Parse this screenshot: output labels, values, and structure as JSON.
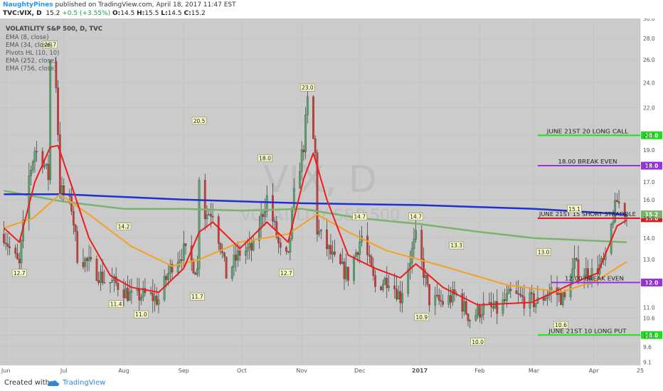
{
  "header": {
    "author": "NaughtyPines",
    "published": "published on TradingView.com, April 18, 2017 11:47 EST",
    "symbol": "TVC:VIX, D",
    "last": "15.2",
    "change": "+0.5 (+3.55%)",
    "o_label": "O:",
    "o": "14.5",
    "h_label": "H:",
    "h": "15.5",
    "l_label": "L:",
    "l": "14.5",
    "c_label": "C:",
    "c": "15.2"
  },
  "footer": {
    "created": "Created with",
    "brand": "TradingView"
  },
  "colors": {
    "background": "#cbcbcb",
    "up_candle": "#53a86b",
    "down_candle": "#d23a34",
    "ema8": "#ee1c1c",
    "ema34": "#f7a023",
    "ema252": "#7cb36b",
    "ema756": "#1f2fd2",
    "long_call": "#1fe01f",
    "break_even": "#9b30e0",
    "short": "#e4141b"
  },
  "chart_data": {
    "type": "candlestick",
    "title": "VOLATILITY S&P 500, D, TVC",
    "watermark_big": "VIX, D",
    "watermark_small": "VOLATILITY S&P 500",
    "legend": [
      "EMA (8, close)",
      "EMA (34, close)",
      "Pivots HL (10, 10)",
      "EMA (252, close)",
      "EMA (756, close)"
    ],
    "y_scale": "log",
    "ylim": [
      9.0,
      30.0
    ],
    "y_ticks": [
      "30.0",
      "28.0",
      "26.0",
      "24.0",
      "22.0",
      "20.0",
      "19.0",
      "18.0",
      "17.0",
      "16.0",
      "15.0",
      "14.0",
      "13.0",
      "12.0",
      "11.0",
      "10.6",
      "10.0",
      "9.6",
      "9.1"
    ],
    "x_ticks": [
      {
        "label": "Jun",
        "date": "2016-06-01"
      },
      {
        "label": "Jul",
        "date": "2016-07-01"
      },
      {
        "label": "Aug",
        "date": "2016-08-01"
      },
      {
        "label": "Sep",
        "date": "2016-09-01"
      },
      {
        "label": "Oct",
        "date": "2016-10-01"
      },
      {
        "label": "Nov",
        "date": "2016-11-01"
      },
      {
        "label": "Dec",
        "date": "2016-12-01"
      },
      {
        "label": "2017",
        "date": "2017-01-01"
      },
      {
        "label": "Feb",
        "date": "2017-02-01"
      },
      {
        "label": "Mar",
        "date": "2017-03-01"
      },
      {
        "label": "Apr",
        "date": "2017-04-01"
      },
      {
        "label": "25",
        "date": "2017-04-25"
      }
    ],
    "xlim": [
      "2016-05-29",
      "2017-04-25"
    ],
    "price_anchors": [
      [
        "2016-05-31",
        14.2
      ],
      [
        "2016-06-03",
        13.5
      ],
      [
        "2016-06-08",
        12.7
      ],
      [
        "2016-06-13",
        17.3
      ],
      [
        "2016-06-16",
        19.0
      ],
      [
        "2016-06-20",
        18.4
      ],
      [
        "2016-06-23",
        17.3
      ],
      [
        "2016-06-24",
        25.8
      ],
      [
        "2016-06-27",
        23.9
      ],
      [
        "2016-06-29",
        16.6
      ],
      [
        "2016-07-05",
        15.6
      ],
      [
        "2016-07-08",
        13.2
      ],
      [
        "2016-07-14",
        12.8
      ],
      [
        "2016-07-22",
        12.1
      ],
      [
        "2016-07-29",
        11.9
      ],
      [
        "2016-08-05",
        11.4
      ],
      [
        "2016-08-12",
        11.5
      ],
      [
        "2016-08-19",
        11.3
      ],
      [
        "2016-08-26",
        12.8
      ],
      [
        "2016-09-01",
        13.4
      ],
      [
        "2016-09-08",
        12.5
      ],
      [
        "2016-09-09",
        17.5
      ],
      [
        "2016-09-12",
        15.2
      ],
      [
        "2016-09-16",
        15.4
      ],
      [
        "2016-09-23",
        12.3
      ],
      [
        "2016-09-30",
        13.3
      ],
      [
        "2016-10-07",
        13.5
      ],
      [
        "2016-10-14",
        16.1
      ],
      [
        "2016-10-21",
        13.3
      ],
      [
        "2016-10-25",
        13.0
      ],
      [
        "2016-10-28",
        16.2
      ],
      [
        "2016-11-02",
        19.3
      ],
      [
        "2016-11-04",
        22.5
      ],
      [
        "2016-11-08",
        18.7
      ],
      [
        "2016-11-09",
        14.4
      ],
      [
        "2016-11-18",
        12.9
      ],
      [
        "2016-11-25",
        12.3
      ],
      [
        "2016-12-02",
        14.1
      ],
      [
        "2016-12-09",
        11.8
      ],
      [
        "2016-12-16",
        12.2
      ],
      [
        "2016-12-22",
        11.4
      ],
      [
        "2016-12-30",
        14.0
      ],
      [
        "2017-01-06",
        11.3
      ],
      [
        "2017-01-13",
        11.2
      ],
      [
        "2017-01-20",
        11.5
      ],
      [
        "2017-01-27",
        10.6
      ],
      [
        "2017-02-03",
        11.0
      ],
      [
        "2017-02-10",
        10.9
      ],
      [
        "2017-02-17",
        11.5
      ],
      [
        "2017-02-24",
        11.3
      ],
      [
        "2017-03-03",
        11.2
      ],
      [
        "2017-03-10",
        11.7
      ],
      [
        "2017-03-17",
        11.3
      ],
      [
        "2017-03-22",
        12.8
      ],
      [
        "2017-03-24",
        12.5
      ],
      [
        "2017-03-31",
        12.4
      ],
      [
        "2017-04-07",
        12.9
      ],
      [
        "2017-04-11",
        15.1
      ],
      [
        "2017-04-13",
        15.9
      ],
      [
        "2017-04-18",
        15.2
      ]
    ],
    "ema8": [
      [
        "2016-05-31",
        14.5
      ],
      [
        "2016-06-08",
        13.8
      ],
      [
        "2016-06-16",
        17.0
      ],
      [
        "2016-06-24",
        19.2
      ],
      [
        "2016-06-28",
        19.3
      ],
      [
        "2016-07-05",
        16.8
      ],
      [
        "2016-07-14",
        14.0
      ],
      [
        "2016-07-25",
        12.3
      ],
      [
        "2016-08-05",
        11.8
      ],
      [
        "2016-08-19",
        11.6
      ],
      [
        "2016-09-01",
        12.6
      ],
      [
        "2016-09-09",
        14.3
      ],
      [
        "2016-09-16",
        14.8
      ],
      [
        "2016-09-30",
        13.5
      ],
      [
        "2016-10-14",
        14.8
      ],
      [
        "2016-10-25",
        13.8
      ],
      [
        "2016-11-02",
        17.2
      ],
      [
        "2016-11-07",
        18.8
      ],
      [
        "2016-11-14",
        16.0
      ],
      [
        "2016-11-25",
        13.2
      ],
      [
        "2016-12-09",
        12.6
      ],
      [
        "2016-12-22",
        12.2
      ],
      [
        "2016-12-30",
        12.8
      ],
      [
        "2017-01-13",
        11.8
      ],
      [
        "2017-01-31",
        11.1
      ],
      [
        "2017-02-28",
        11.2
      ],
      [
        "2017-03-22",
        12.0
      ],
      [
        "2017-04-03",
        12.4
      ],
      [
        "2017-04-13",
        14.6
      ],
      [
        "2017-04-18",
        14.9
      ]
    ],
    "ema34": [
      [
        "2016-05-31",
        14.5
      ],
      [
        "2016-06-15",
        15.0
      ],
      [
        "2016-06-29",
        16.3
      ],
      [
        "2016-07-14",
        15.2
      ],
      [
        "2016-08-05",
        13.6
      ],
      [
        "2016-08-26",
        12.7
      ],
      [
        "2016-09-09",
        13.0
      ],
      [
        "2016-09-30",
        13.8
      ],
      [
        "2016-10-25",
        14.2
      ],
      [
        "2016-11-09",
        15.2
      ],
      [
        "2016-11-25",
        14.3
      ],
      [
        "2016-12-15",
        13.4
      ],
      [
        "2017-01-13",
        12.7
      ],
      [
        "2017-02-15",
        11.9
      ],
      [
        "2017-03-15",
        11.6
      ],
      [
        "2017-04-03",
        12.1
      ],
      [
        "2017-04-18",
        12.9
      ]
    ],
    "ema252": [
      [
        "2016-05-31",
        16.5
      ],
      [
        "2016-06-30",
        15.9
      ],
      [
        "2016-08-01",
        15.5
      ],
      [
        "2016-09-01",
        15.5
      ],
      [
        "2016-10-01",
        15.4
      ],
      [
        "2016-11-01",
        15.5
      ],
      [
        "2016-12-01",
        15.0
      ],
      [
        "2017-01-01",
        14.7
      ],
      [
        "2017-02-01",
        14.3
      ],
      [
        "2017-03-01",
        14.0
      ],
      [
        "2017-04-18",
        13.8
      ]
    ],
    "ema756": [
      [
        "2016-05-31",
        16.3
      ],
      [
        "2016-07-01",
        16.3
      ],
      [
        "2016-09-01",
        16.0
      ],
      [
        "2016-11-01",
        15.8
      ],
      [
        "2017-01-01",
        15.7
      ],
      [
        "2017-03-01",
        15.5
      ],
      [
        "2017-04-18",
        15.2
      ]
    ],
    "pivot_labels": [
      {
        "text": "26.7",
        "date": "2016-06-24",
        "value": 26.7,
        "pos": "above"
      },
      {
        "text": "12.7",
        "date": "2016-06-08",
        "value": 12.7,
        "pos": "below"
      },
      {
        "text": "11.4",
        "date": "2016-07-28",
        "value": 11.4,
        "pos": "below"
      },
      {
        "text": "14.2",
        "date": "2016-08-01",
        "value": 14.2,
        "pos": "above"
      },
      {
        "text": "11.0",
        "date": "2016-08-10",
        "value": 11.0,
        "pos": "below"
      },
      {
        "text": "20.5",
        "date": "2016-09-09",
        "value": 20.5,
        "pos": "above"
      },
      {
        "text": "11.7",
        "date": "2016-09-08",
        "value": 11.7,
        "pos": "below"
      },
      {
        "text": "18.0",
        "date": "2016-10-13",
        "value": 18.0,
        "pos": "above"
      },
      {
        "text": "12.7",
        "date": "2016-10-24",
        "value": 12.7,
        "pos": "below"
      },
      {
        "text": "23.0",
        "date": "2016-11-04",
        "value": 23.0,
        "pos": "above"
      },
      {
        "text": "14.7",
        "date": "2016-12-01",
        "value": 14.7,
        "pos": "above"
      },
      {
        "text": "10.9",
        "date": "2017-01-02",
        "value": 10.9,
        "pos": "below"
      },
      {
        "text": "14.7",
        "date": "2016-12-30",
        "value": 14.7,
        "pos": "above"
      },
      {
        "text": "13.3",
        "date": "2017-01-20",
        "value": 13.3,
        "pos": "above"
      },
      {
        "text": "10.0",
        "date": "2017-01-31",
        "value": 10.0,
        "pos": "below"
      },
      {
        "text": "13.0",
        "date": "2017-03-06",
        "value": 13.0,
        "pos": "above"
      },
      {
        "text": "10.6",
        "date": "2017-03-15",
        "value": 10.6,
        "pos": "below"
      },
      {
        "text": "15.1",
        "date": "2017-03-22",
        "value": 15.1,
        "pos": "above"
      }
    ],
    "levels": [
      {
        "label": "JUNE 21ST 20 LONG CALL",
        "value": 20.0,
        "tag": "20.0",
        "color": "#1fe01f",
        "from": "2017-03-03"
      },
      {
        "label": "18.00 BREAK EVEN",
        "value": 18.0,
        "tag": "18.0",
        "color": "#9b30e0",
        "from": "2017-03-03"
      },
      {
        "label": "JUNE 21ST 15 SHORT STRADDLE",
        "value": 15.0,
        "tag": "15.0",
        "color": "#e4141b",
        "from": "2017-03-03"
      },
      {
        "label": "12.00 BREAK EVEN",
        "value": 12.0,
        "tag": "12.0",
        "color": "#9b30e0",
        "from": "2017-03-10"
      },
      {
        "label": "JUNE 21ST 10 LONG PUT",
        "value": 10.0,
        "tag": "10.0",
        "color": "#1fe01f",
        "from": "2017-03-03"
      }
    ],
    "last_price": {
      "value": 15.2,
      "tag": "15.2",
      "color": "#7cb36b"
    }
  }
}
